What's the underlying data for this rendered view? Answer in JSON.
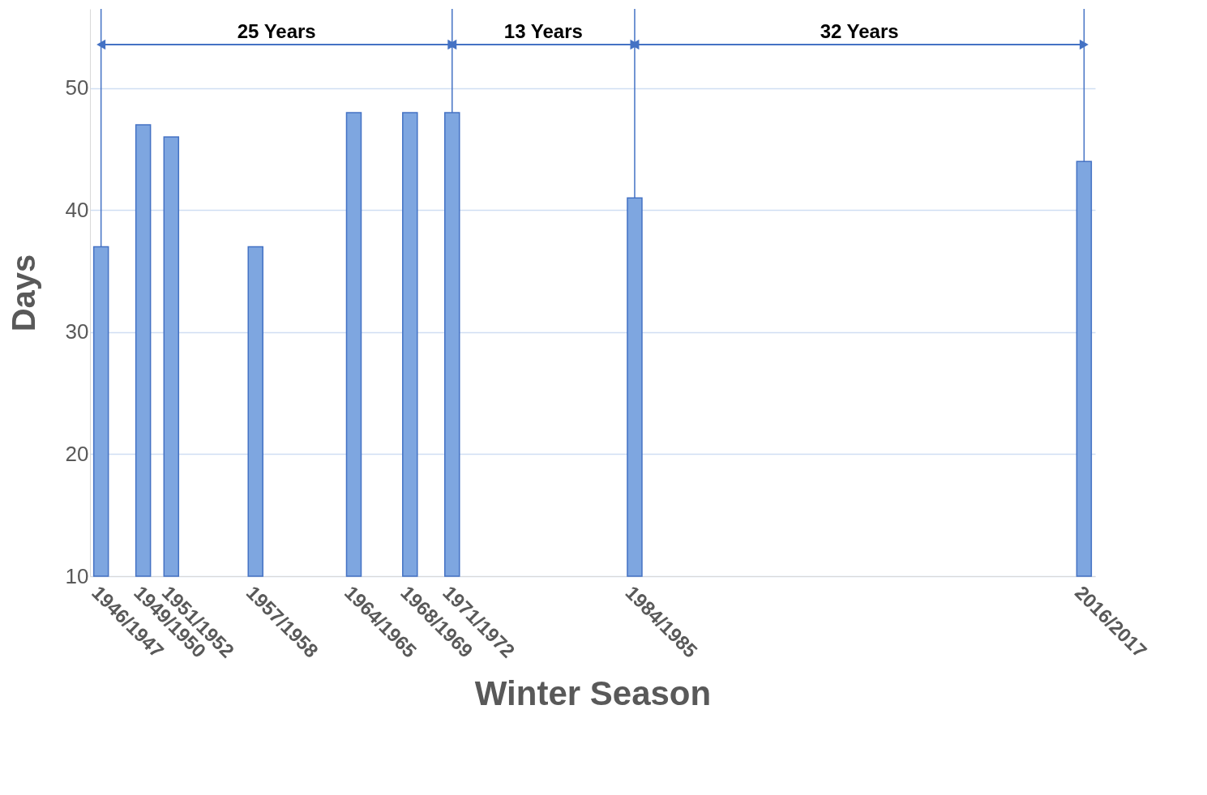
{
  "chart_data": {
    "type": "bar",
    "xlabel": "Winter Season",
    "ylabel": "Days",
    "categories": [
      "1946/1947",
      null,
      null,
      "1949/1950",
      null,
      "1951/1952",
      null,
      null,
      null,
      null,
      null,
      "1957/1958",
      null,
      null,
      null,
      null,
      null,
      null,
      "1964/1965",
      null,
      null,
      null,
      "1968/1969",
      null,
      null,
      "1971/1972",
      null,
      null,
      null,
      null,
      null,
      null,
      null,
      null,
      null,
      null,
      null,
      null,
      "1984/1985",
      null,
      null,
      null,
      null,
      null,
      null,
      null,
      null,
      null,
      null,
      null,
      null,
      null,
      null,
      null,
      null,
      null,
      null,
      null,
      null,
      null,
      null,
      null,
      null,
      null,
      null,
      null,
      null,
      null,
      null,
      null,
      "2016/2017"
    ],
    "values": [
      37,
      null,
      null,
      47,
      null,
      46,
      null,
      null,
      null,
      null,
      null,
      37,
      null,
      null,
      null,
      null,
      null,
      null,
      48,
      null,
      null,
      null,
      48,
      null,
      null,
      48,
      null,
      null,
      null,
      null,
      null,
      null,
      null,
      null,
      null,
      null,
      null,
      null,
      41,
      null,
      null,
      null,
      null,
      null,
      null,
      null,
      null,
      null,
      null,
      null,
      null,
      null,
      null,
      null,
      null,
      null,
      null,
      null,
      null,
      null,
      null,
      null,
      null,
      null,
      null,
      null,
      null,
      null,
      null,
      null,
      44
    ],
    "color": "#7ea6e0",
    "ylim": [
      10,
      56.5
    ],
    "yticks": [
      10,
      20,
      30,
      40,
      50
    ],
    "grid": "y",
    "ref_lines": [
      {
        "axis": "x",
        "value": "1946/1947",
        "color": "#4472c4"
      },
      {
        "axis": "x",
        "value": "1971/1972",
        "color": "#4472c4"
      },
      {
        "axis": "x",
        "value": "1984/1985",
        "color": "#4472c4"
      },
      {
        "axis": "x",
        "value": "2016/2017",
        "color": "#4472c4"
      }
    ],
    "annotations": [
      "25 Years",
      "13 Years",
      "32 Years"
    ]
  }
}
